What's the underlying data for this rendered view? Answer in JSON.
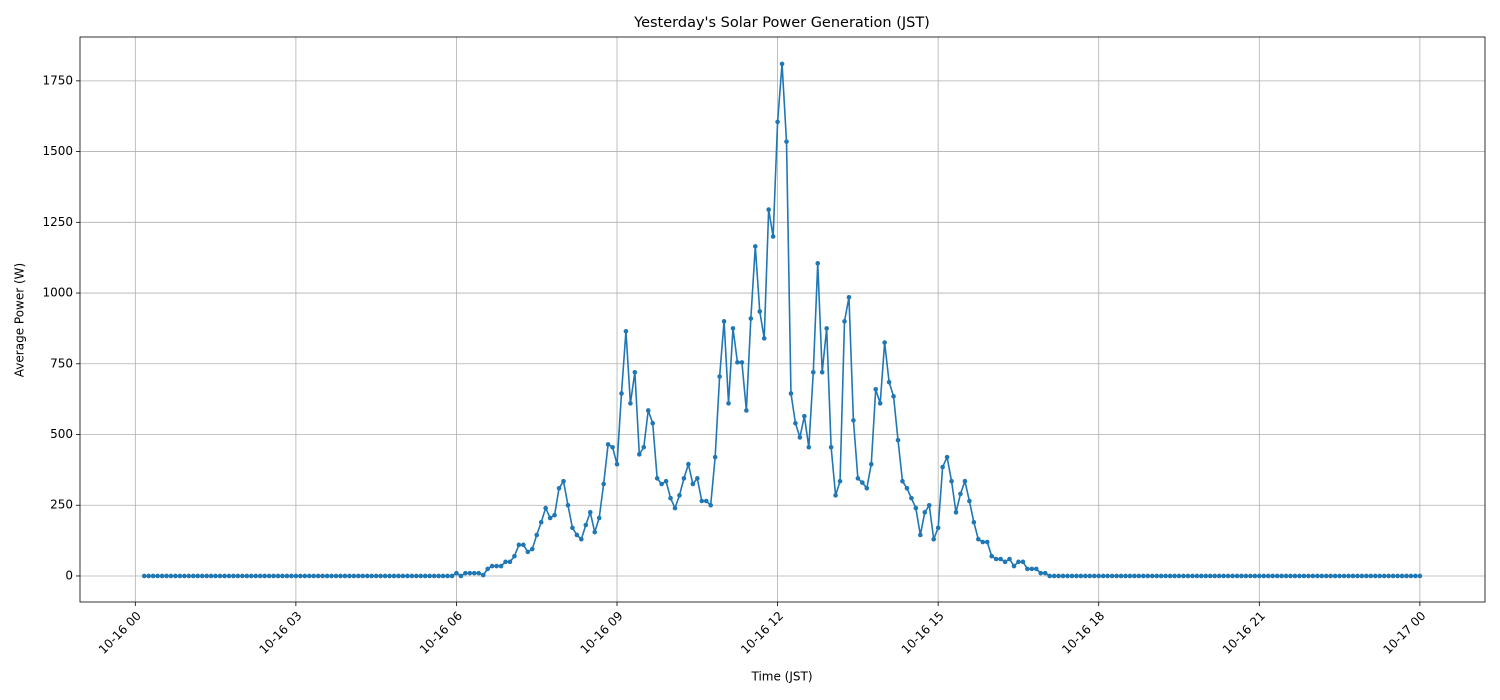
{
  "chart_data": {
    "type": "line",
    "title": "Yesterday's Solar Power Generation (JST)",
    "x_label": "Time (JST)",
    "y_label": "Average Power (W)",
    "xlim": [
      -62,
      1513
    ],
    "ylim": [
      -92,
      1905
    ],
    "grid": true,
    "xticks": [
      {
        "value": 0,
        "label": "10-16 00"
      },
      {
        "value": 180,
        "label": "10-16 03"
      },
      {
        "value": 360,
        "label": "10-16 06"
      },
      {
        "value": 540,
        "label": "10-16 09"
      },
      {
        "value": 720,
        "label": "10-16 12"
      },
      {
        "value": 900,
        "label": "10-16 15"
      },
      {
        "value": 1080,
        "label": "10-16 18"
      },
      {
        "value": 1260,
        "label": "10-16 21"
      },
      {
        "value": 1440,
        "label": "10-17 00"
      }
    ],
    "yticks": [
      0,
      250,
      500,
      750,
      1000,
      1250,
      1500,
      1750
    ],
    "x": [
      10,
      15,
      20,
      25,
      30,
      35,
      40,
      45,
      50,
      55,
      60,
      65,
      70,
      75,
      80,
      85,
      90,
      95,
      100,
      105,
      110,
      115,
      120,
      125,
      130,
      135,
      140,
      145,
      150,
      155,
      160,
      165,
      170,
      175,
      180,
      185,
      190,
      195,
      200,
      205,
      210,
      215,
      220,
      225,
      230,
      235,
      240,
      245,
      250,
      255,
      260,
      265,
      270,
      275,
      280,
      285,
      290,
      295,
      300,
      305,
      310,
      315,
      320,
      325,
      330,
      335,
      340,
      345,
      350,
      355,
      360,
      365,
      370,
      375,
      380,
      385,
      390,
      395,
      400,
      405,
      410,
      415,
      420,
      425,
      430,
      435,
      440,
      445,
      450,
      455,
      460,
      465,
      470,
      475,
      480,
      485,
      490,
      495,
      500,
      505,
      510,
      515,
      520,
      525,
      530,
      535,
      540,
      545,
      550,
      555,
      560,
      565,
      570,
      575,
      580,
      585,
      590,
      595,
      600,
      605,
      610,
      615,
      620,
      625,
      630,
      635,
      640,
      645,
      650,
      655,
      660,
      665,
      670,
      675,
      680,
      685,
      690,
      695,
      700,
      705,
      710,
      715,
      720,
      725,
      730,
      735,
      740,
      745,
      750,
      755,
      760,
      765,
      770,
      775,
      780,
      785,
      790,
      795,
      800,
      805,
      810,
      815,
      820,
      825,
      830,
      835,
      840,
      845,
      850,
      855,
      860,
      865,
      870,
      875,
      880,
      885,
      890,
      895,
      900,
      905,
      910,
      915,
      920,
      925,
      930,
      935,
      940,
      945,
      950,
      955,
      960,
      965,
      970,
      975,
      980,
      985,
      990,
      995,
      1000,
      1005,
      1010,
      1015,
      1020,
      1025,
      1030,
      1035,
      1040,
      1045,
      1050,
      1055,
      1060,
      1065,
      1070,
      1075,
      1080,
      1085,
      1090,
      1095,
      1100,
      1105,
      1110,
      1115,
      1120,
      1125,
      1130,
      1135,
      1140,
      1145,
      1150,
      1155,
      1160,
      1165,
      1170,
      1175,
      1180,
      1185,
      1190,
      1195,
      1200,
      1205,
      1210,
      1215,
      1220,
      1225,
      1230,
      1235,
      1240,
      1245,
      1250,
      1255,
      1260,
      1265,
      1270,
      1275,
      1280,
      1285,
      1290,
      1295,
      1300,
      1305,
      1310,
      1315,
      1320,
      1325,
      1330,
      1335,
      1340,
      1345,
      1350,
      1355,
      1360,
      1365,
      1370,
      1375,
      1380,
      1385,
      1390,
      1395,
      1400,
      1405,
      1410,
      1415,
      1420,
      1425,
      1430,
      1435,
      1440
    ],
    "series": [
      {
        "name": "Average Power",
        "color": "#1f77b4",
        "values": [
          0,
          0,
          0,
          0,
          0,
          0,
          0,
          0,
          0,
          0,
          0,
          0,
          0,
          0,
          0,
          0,
          0,
          0,
          0,
          0,
          0,
          0,
          0,
          0,
          0,
          0,
          0,
          0,
          0,
          0,
          0,
          0,
          0,
          0,
          0,
          0,
          0,
          0,
          0,
          0,
          0,
          0,
          0,
          0,
          0,
          0,
          0,
          0,
          0,
          0,
          0,
          0,
          0,
          0,
          0,
          0,
          0,
          0,
          0,
          0,
          0,
          0,
          0,
          0,
          0,
          0,
          0,
          0,
          0,
          0,
          10,
          0,
          10,
          10,
          10,
          10,
          3,
          25,
          35,
          35,
          35,
          50,
          50,
          70,
          110,
          110,
          85,
          95,
          145,
          190,
          240,
          205,
          215,
          310,
          335,
          250,
          170,
          145,
          130,
          180,
          225,
          155,
          205,
          325,
          465,
          455,
          395,
          645,
          865,
          610,
          720,
          430,
          455,
          585,
          540,
          345,
          325,
          335,
          275,
          240,
          285,
          345,
          395,
          325,
          345,
          265,
          265,
          250,
          420,
          705,
          900,
          610,
          875,
          755,
          755,
          585,
          910,
          1165,
          935,
          840,
          1295,
          1200,
          1605,
          1810,
          1535,
          645,
          540,
          490,
          565,
          455,
          720,
          1105,
          720,
          875,
          455,
          285,
          335,
          900,
          985,
          550,
          345,
          330,
          310,
          395,
          660,
          610,
          825,
          685,
          635,
          480,
          335,
          310,
          275,
          240,
          145,
          225,
          250,
          130,
          170,
          385,
          420,
          335,
          225,
          290,
          335,
          265,
          190,
          130,
          120,
          120,
          70,
          60,
          60,
          50,
          60,
          35,
          50,
          50,
          25,
          25,
          25,
          10,
          10,
          0,
          0,
          0,
          0,
          0,
          0,
          0,
          0,
          0,
          0,
          0,
          0,
          0,
          0,
          0,
          0,
          0,
          0,
          0,
          0,
          0,
          0,
          0,
          0,
          0,
          0,
          0,
          0,
          0,
          0,
          0,
          0,
          0,
          0,
          0,
          0,
          0,
          0,
          0,
          0,
          0,
          0,
          0,
          0,
          0,
          0,
          0,
          0,
          0,
          0,
          0,
          0,
          0,
          0,
          0,
          0,
          0,
          0,
          0,
          0,
          0,
          0,
          0,
          0,
          0,
          0,
          0,
          0,
          0,
          0,
          0,
          0,
          0,
          0,
          0,
          0,
          0,
          0,
          0,
          0,
          0,
          0,
          0,
          0
        ]
      }
    ]
  }
}
